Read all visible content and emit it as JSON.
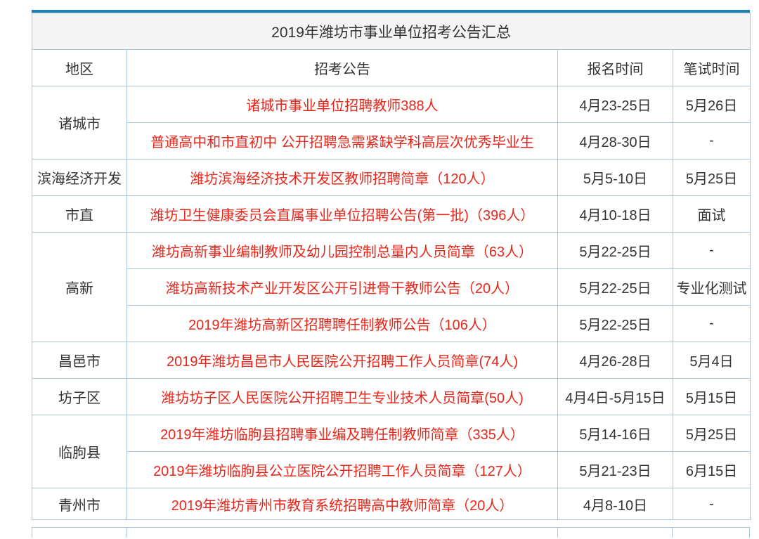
{
  "colors": {
    "accent_bar": "#1f81ab",
    "table_border": "#a9c4e4",
    "link_red": "#e8261a",
    "text": "#333333",
    "title_row_bg": "#f4f4f5"
  },
  "table": {
    "title": "2019年潍坊市事业单位招考公告汇总",
    "headers": {
      "region": "地区",
      "announcement": "招考公告",
      "signup": "报名时间",
      "exam": "笔试时间"
    },
    "groups": [
      {
        "region": "诸城市",
        "rows": [
          {
            "announcement": "诸城市事业单位招聘教师388人",
            "signup": "4月23-25日",
            "exam": "5月26日"
          },
          {
            "announcement": "普通高中和市直初中 公开招聘急需紧缺学科高层次优秀毕业生",
            "signup": "4月28-30日",
            "exam": "-"
          }
        ]
      },
      {
        "region": "滨海经济开发",
        "rows": [
          {
            "announcement": "潍坊滨海经济技术开发区教师招聘简章（120人）",
            "signup": "5月5-10日",
            "exam": "5月25日"
          }
        ]
      },
      {
        "region": "市直",
        "rows": [
          {
            "announcement": "潍坊卫生健康委员会直属事业单位招聘公告(第一批)（396人）",
            "signup": "4月10-18日",
            "exam": "面试"
          }
        ]
      },
      {
        "region": "高新",
        "rows": [
          {
            "announcement": "潍坊高新事业编制教师及幼儿园控制总量内人员简章（63人）",
            "signup": "5月22-25日",
            "exam": "-"
          },
          {
            "announcement": "潍坊高新技术产业开发区公开引进骨干教师公告（20人）",
            "signup": "5月22-25日",
            "exam": "专业化测试"
          },
          {
            "announcement": "2019年潍坊高新区招聘聘任制教师公告（106人）",
            "signup": "5月22-25日",
            "exam": "-"
          }
        ]
      },
      {
        "region": "昌邑市",
        "rows": [
          {
            "announcement": "2019年潍坊昌邑市人民医院公开招聘工作人员简章(74人)",
            "signup": "4月26-28日",
            "exam": "5月4日"
          }
        ]
      },
      {
        "region": "坊子区",
        "rows": [
          {
            "announcement": "潍坊坊子区人民医院公开招聘卫生专业技术人员简章(50人)",
            "signup": "4月4日-5月15日",
            "exam": "5月15日"
          }
        ]
      },
      {
        "region": "临朐县",
        "rows": [
          {
            "announcement": "2019年潍坊临朐县招聘事业编及聘任制教师简章（335人）",
            "signup": "5月14-16日",
            "exam": "5月25日"
          },
          {
            "announcement": "2019年潍坊临朐县公立医院公开招聘工作人员简章（127人）",
            "signup": "5月21-23日",
            "exam": "6月15日"
          }
        ]
      },
      {
        "region": "青州市",
        "rows": [
          {
            "announcement": "2019年潍坊青州市教育系统招聘高中教师简章（20人）",
            "signup": "4月8-10日",
            "exam": "-"
          }
        ]
      }
    ]
  }
}
